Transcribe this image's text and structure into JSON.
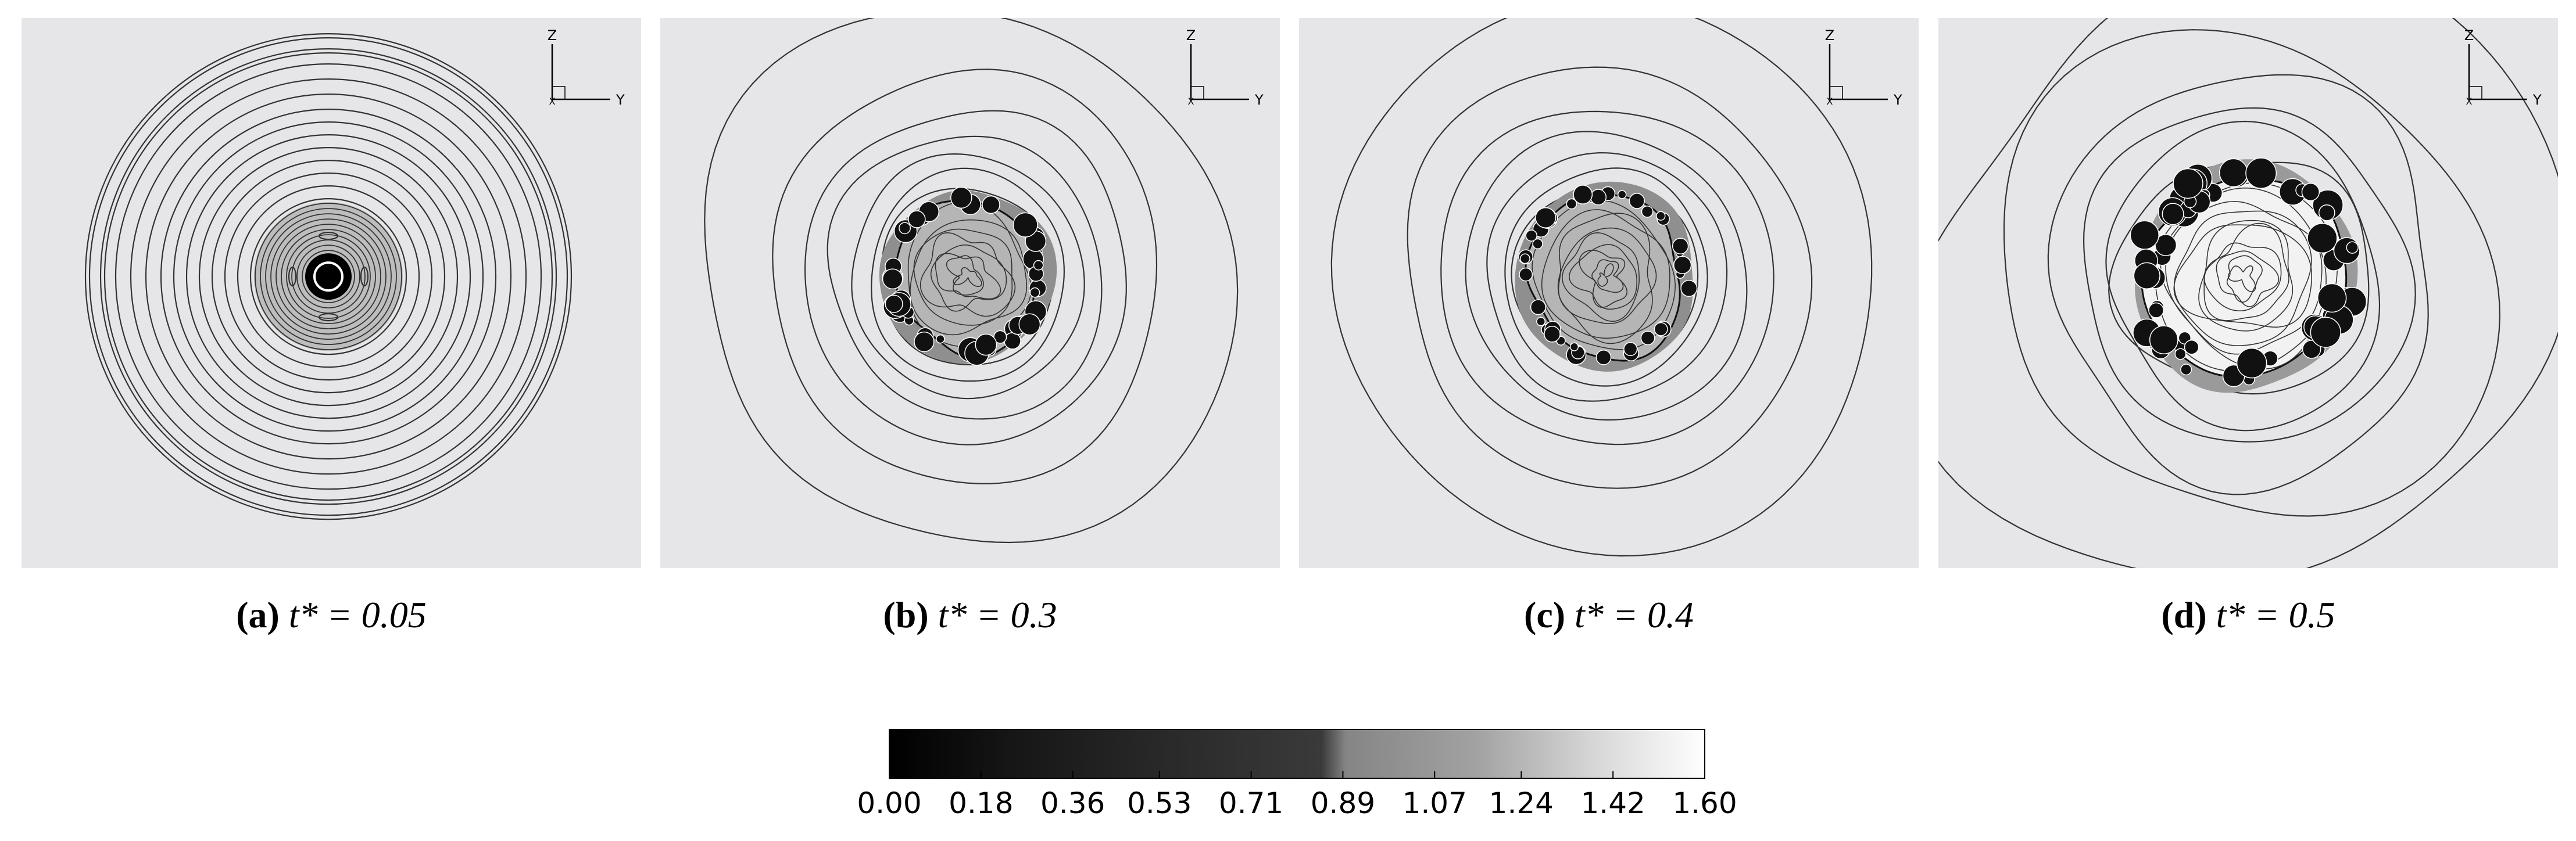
{
  "figure": {
    "panels": [
      {
        "label": "(a)",
        "caption": "t* = 0.05"
      },
      {
        "label": "(b)",
        "caption": "t* = 0.3"
      },
      {
        "label": "(c)",
        "caption": "t* = 0.4"
      },
      {
        "label": "(d)",
        "caption": "t* = 0.5"
      }
    ],
    "triad": {
      "z": "Z",
      "y": "Y",
      "x": "X"
    },
    "colorbar": {
      "range": [
        0,
        1.6
      ],
      "ticks": [
        {
          "value": 0,
          "label": "0.00"
        },
        0.18,
        0.36,
        0.53,
        0.71,
        0.89,
        1.07,
        1.24,
        1.42,
        {
          "value": 1.6,
          "label": "1.60"
        }
      ]
    }
  }
}
